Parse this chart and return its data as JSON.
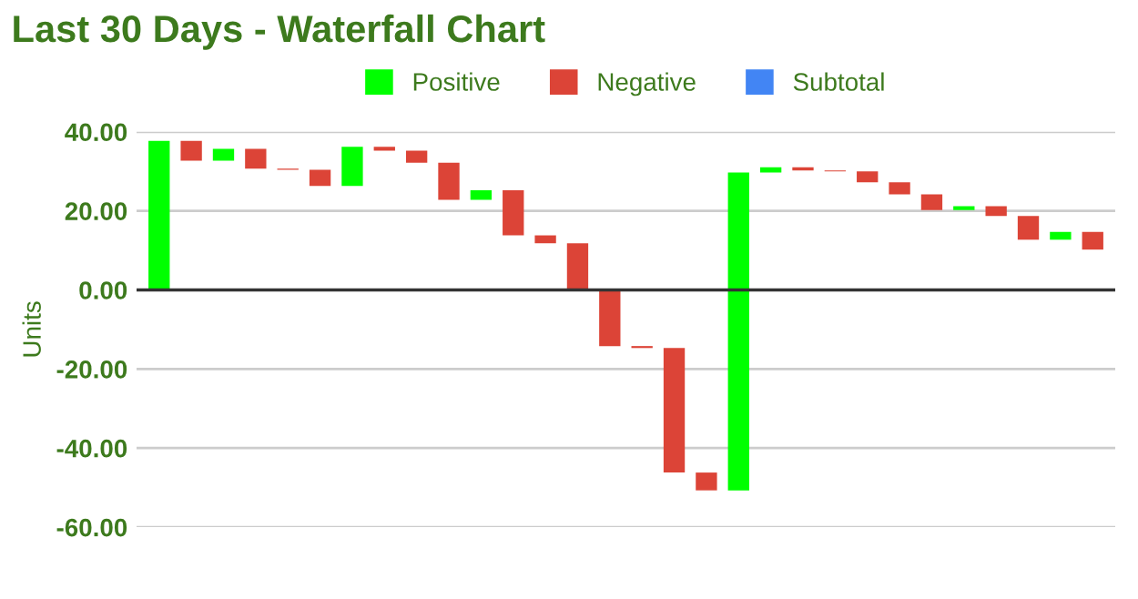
{
  "chart_data": {
    "type": "bar",
    "title": "Last 30 Days - Waterfall Chart",
    "ylabel": "Units",
    "categories": [
      null,
      null,
      null,
      null,
      null,
      null,
      null,
      null,
      null,
      null,
      null,
      null,
      null,
      null,
      null,
      null,
      null,
      null,
      null,
      null,
      null,
      null,
      null,
      null,
      null,
      null,
      null,
      null,
      null,
      null
    ],
    "series": [
      {
        "name": "Positive",
        "color": "#00ff00",
        "values": [
          37.7,
          null,
          3.0,
          null,
          null,
          null,
          9.9,
          null,
          null,
          null,
          2.4,
          null,
          null,
          null,
          null,
          null,
          null,
          null,
          80.4,
          1.3,
          null,
          null,
          null,
          null,
          null,
          1.0,
          null,
          null,
          2.0,
          null
        ],
        "base": [
          0,
          null,
          32.7,
          null,
          null,
          null,
          26.3,
          null,
          null,
          null,
          22.8,
          null,
          null,
          null,
          null,
          null,
          null,
          null,
          -50.7,
          29.7,
          null,
          null,
          null,
          null,
          null,
          20.2,
          null,
          null,
          12.7,
          null
        ]
      },
      {
        "name": "Negative",
        "color": "#dc4437",
        "values": [
          null,
          -5.0,
          null,
          -5.0,
          -0.3,
          -4.1,
          null,
          -1.0,
          -3.0,
          -9.4,
          null,
          -11.4,
          -2.0,
          -11.8,
          -14.2,
          -0.5,
          -31.5,
          -4.5,
          null,
          null,
          -0.8,
          -0.2,
          -2.8,
          -3.0,
          -4.0,
          null,
          -2.5,
          -6.0,
          null,
          -4.5
        ],
        "base": [
          null,
          37.7,
          null,
          35.7,
          30.7,
          30.4,
          null,
          36.2,
          35.2,
          32.2,
          null,
          25.2,
          13.8,
          11.8,
          0,
          -14.2,
          -14.7,
          -46.2,
          null,
          null,
          31.0,
          30.2,
          30.0,
          27.2,
          24.2,
          null,
          21.2,
          18.7,
          null,
          14.7
        ]
      },
      {
        "name": "Subtotal",
        "color": "#4285f4",
        "values": [
          null,
          null,
          null,
          null,
          null,
          null,
          null,
          null,
          null,
          null,
          null,
          null,
          null,
          null,
          null,
          null,
          null,
          null,
          null,
          null,
          null,
          null,
          null,
          null,
          null,
          null,
          null,
          null,
          null,
          null
        ]
      }
    ],
    "ylim": [
      -60,
      40
    ],
    "yticks": [
      {
        "value": -60,
        "label": "-60.00"
      },
      {
        "value": -40,
        "label": "-40.00"
      },
      {
        "value": -20,
        "label": "-20.00"
      },
      {
        "value": 0,
        "label": "0.00"
      },
      {
        "value": 20,
        "label": "20.00"
      },
      {
        "value": 40,
        "label": "40.00"
      }
    ],
    "ref_lines": [
      {
        "axis": "y",
        "value": 0,
        "color": "#333333"
      }
    ],
    "grid": "y",
    "legend": "top",
    "tick_labels": "y"
  }
}
